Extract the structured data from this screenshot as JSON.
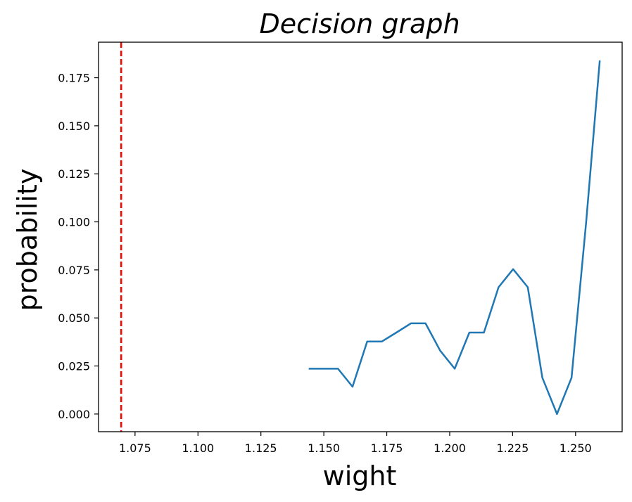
{
  "chart_data": {
    "type": "line",
    "title": "Decision graph",
    "xlabel": "wight",
    "ylabel": "probability",
    "xlim": [
      1.0605,
      1.2685
    ],
    "ylim": [
      -0.0092,
      0.1935
    ],
    "x_ticks": [
      "1.075",
      "1.100",
      "1.125",
      "1.150",
      "1.175",
      "1.200",
      "1.225",
      "1.250"
    ],
    "y_ticks": [
      "0.000",
      "0.025",
      "0.050",
      "0.075",
      "0.100",
      "0.125",
      "0.150",
      "0.175"
    ],
    "grid": false,
    "series": [
      {
        "color": "#1f77b4",
        "x": [
          1.144,
          1.1498,
          1.1556,
          1.1614,
          1.1672,
          1.173,
          1.1788,
          1.1846,
          1.1904,
          1.1962,
          1.202,
          1.2078,
          1.2136,
          1.2194,
          1.2252,
          1.231,
          1.2368,
          1.2426,
          1.2484,
          1.2542,
          1.2596
        ],
        "y": [
          0.0236,
          0.0236,
          0.0236,
          0.0142,
          0.0377,
          0.0377,
          0.0424,
          0.0472,
          0.0472,
          0.033,
          0.0236,
          0.0424,
          0.0424,
          0.066,
          0.0754,
          0.066,
          0.0189,
          0.0,
          0.0189,
          0.1,
          0.184
        ]
      }
    ],
    "vline": {
      "x": 1.0695,
      "color": "#ff0000",
      "style": "dashed"
    }
  }
}
